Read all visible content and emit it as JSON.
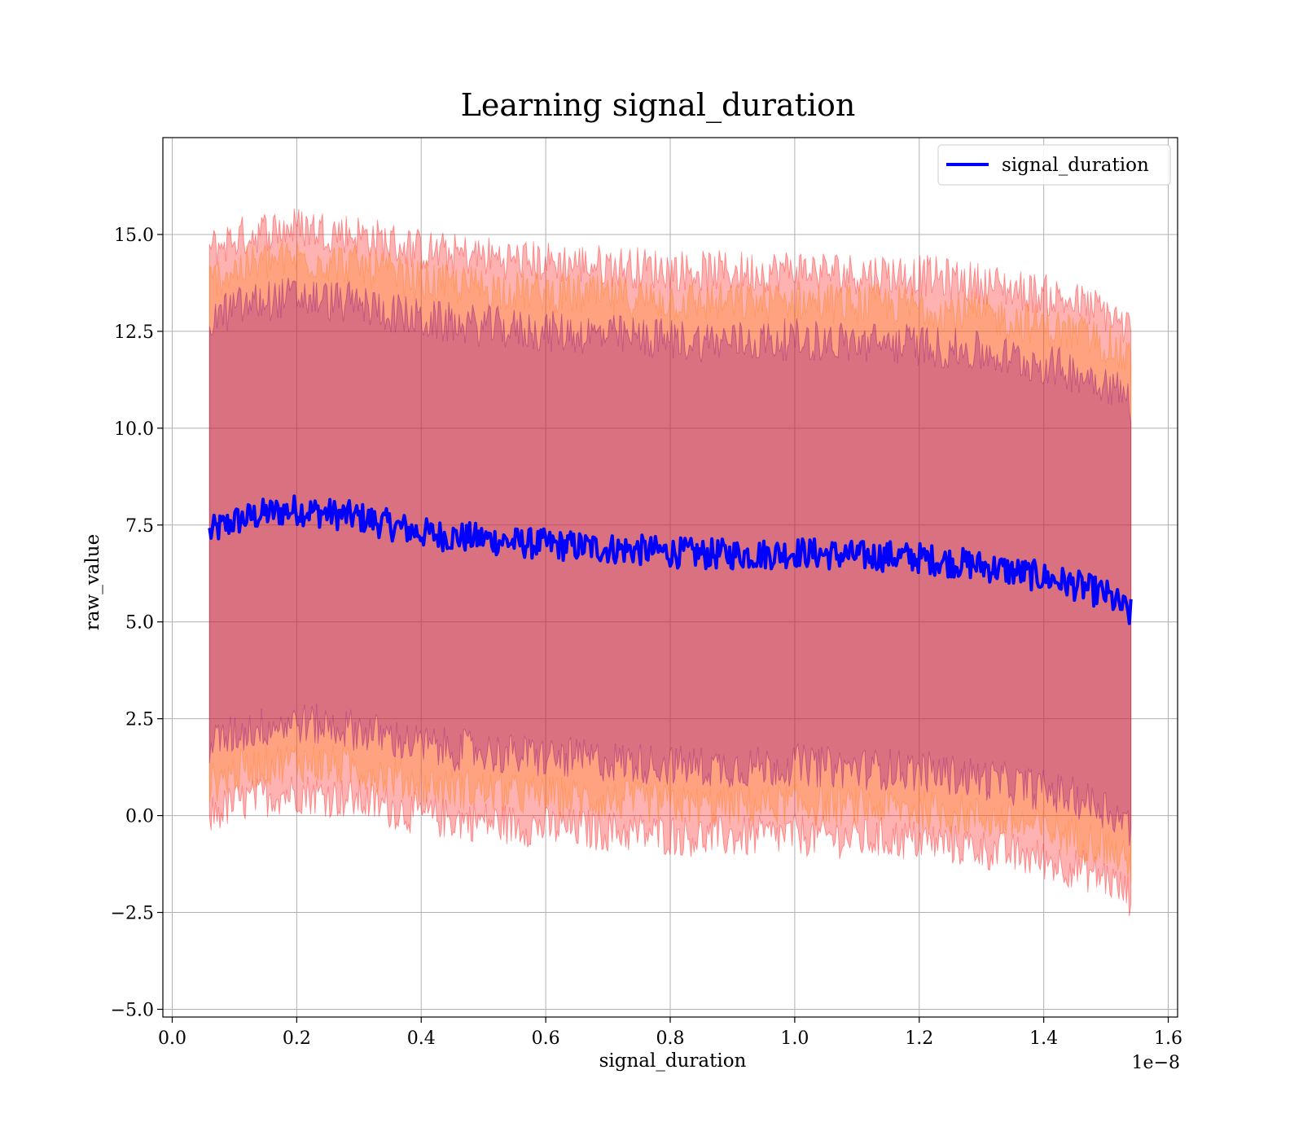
{
  "chart_data": {
    "type": "line",
    "title": "Learning signal_duration",
    "xlabel": "signal_duration",
    "ylabel": "raw_value",
    "x_offset_label": "1e−8",
    "xlim": [
      -0.015,
      1.615
    ],
    "ylim": [
      -5.2,
      17.5
    ],
    "xticks": [
      0.0,
      0.2,
      0.4,
      0.6,
      0.8,
      1.0,
      1.2,
      1.4,
      1.6
    ],
    "xtick_labels": [
      "0.0",
      "0.2",
      "0.4",
      "0.6",
      "0.8",
      "1.0",
      "1.2",
      "1.4",
      "1.6"
    ],
    "yticks": [
      -5.0,
      -2.5,
      0.0,
      2.5,
      5.0,
      7.5,
      10.0,
      12.5,
      15.0
    ],
    "ytick_labels": [
      "−5.0",
      "−2.5",
      "0.0",
      "2.5",
      "5.0",
      "7.5",
      "10.0",
      "12.5",
      "15.0"
    ],
    "grid": true,
    "legend_position": "top-right",
    "colors": {
      "line": "#0000ff",
      "band_outer": "#ff0000",
      "band_middle": "#ff7f0e",
      "band_inner": "#800080",
      "grid": "#b0b0b0"
    },
    "bands": [
      {
        "level": "outer",
        "upper_offset": 7.3,
        "lower_offset": 7.3,
        "opacity": 0.3
      },
      {
        "level": "middle",
        "upper_offset": 6.5,
        "lower_offset": 6.5,
        "opacity": 0.3
      },
      {
        "level": "inner",
        "upper_offset": 5.5,
        "lower_offset": 5.5,
        "opacity": 0.3
      }
    ],
    "series": [
      {
        "name": "signal_duration",
        "x": [
          0.06,
          0.1,
          0.15,
          0.2,
          0.25,
          0.3,
          0.35,
          0.4,
          0.45,
          0.5,
          0.55,
          0.6,
          0.65,
          0.7,
          0.75,
          0.8,
          0.85,
          0.9,
          0.95,
          1.0,
          1.05,
          1.1,
          1.15,
          1.2,
          1.25,
          1.3,
          1.35,
          1.4,
          1.45,
          1.5,
          1.54
        ],
        "y": [
          7.3,
          7.6,
          7.8,
          7.9,
          7.8,
          7.7,
          7.5,
          7.3,
          7.2,
          7.15,
          7.05,
          7.0,
          6.95,
          6.9,
          6.85,
          6.8,
          6.75,
          6.75,
          6.75,
          6.8,
          6.75,
          6.7,
          6.7,
          6.65,
          6.55,
          6.45,
          6.3,
          6.15,
          5.95,
          5.7,
          5.2
        ]
      }
    ]
  }
}
